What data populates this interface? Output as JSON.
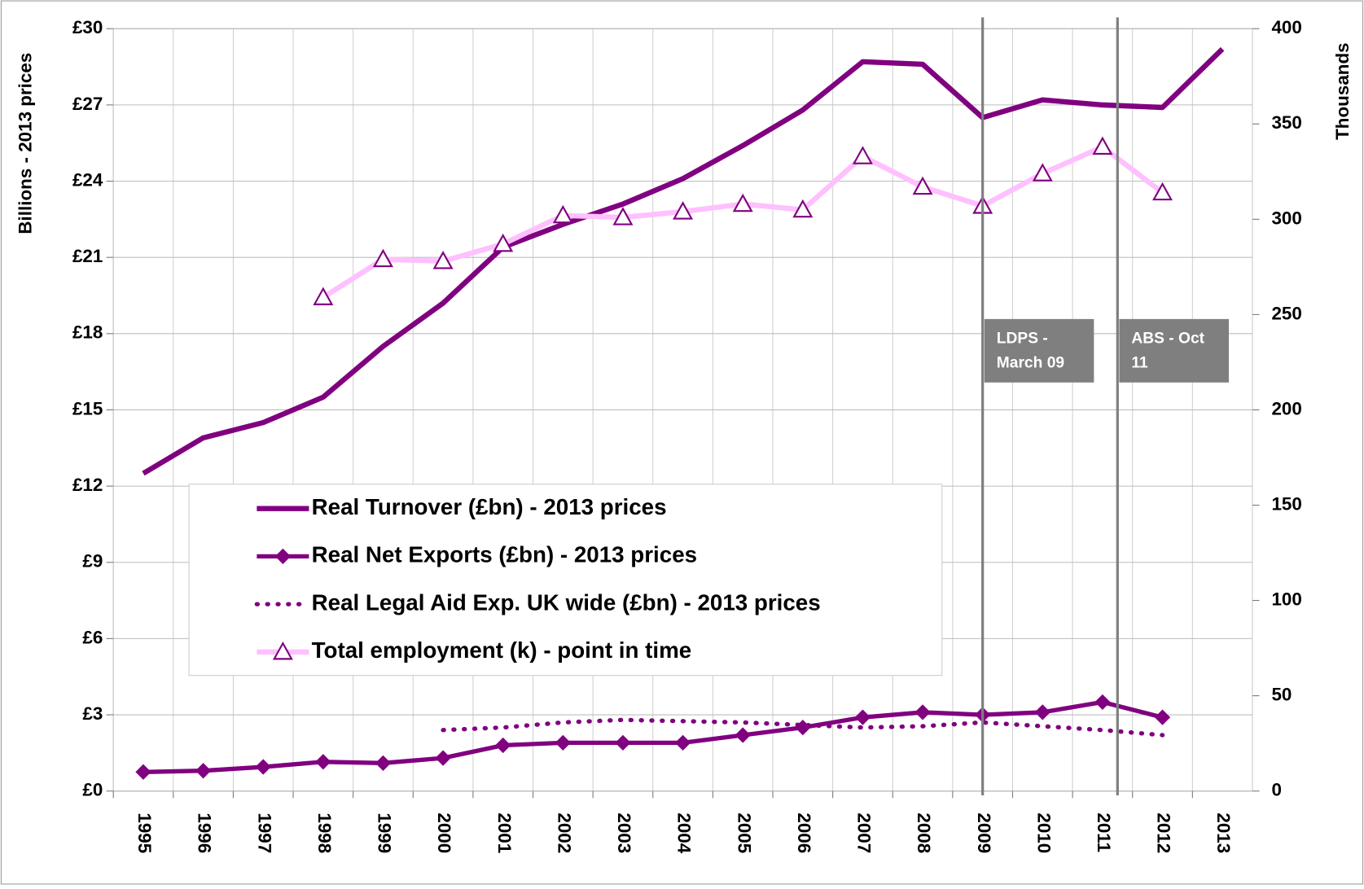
{
  "chart_data": {
    "type": "line",
    "categories": [
      "1995",
      "1996",
      "1997",
      "1998",
      "1999",
      "2000",
      "2001",
      "2002",
      "2003",
      "2004",
      "2005",
      "2006",
      "2007",
      "2008",
      "2009",
      "2010",
      "2011",
      "2012",
      "2013"
    ],
    "ylabel": "Billions - 2013 prices",
    "y2label": "Thousands",
    "ylim": [
      0,
      30
    ],
    "yticks": [
      {
        "value": 0,
        "label": "£0"
      },
      {
        "value": 3,
        "label": "£3"
      },
      {
        "value": 6,
        "label": "£6"
      },
      {
        "value": 9,
        "label": "£9"
      },
      {
        "value": 12,
        "label": "£12"
      },
      {
        "value": 15,
        "label": "£15"
      },
      {
        "value": 18,
        "label": "£18"
      },
      {
        "value": 21,
        "label": "£21"
      },
      {
        "value": 24,
        "label": "£24"
      },
      {
        "value": 27,
        "label": "£27"
      },
      {
        "value": 30,
        "label": "£30"
      }
    ],
    "y2lim": [
      0,
      400
    ],
    "y2ticks": [
      0,
      50,
      100,
      150,
      200,
      250,
      300,
      350,
      400
    ],
    "grid": true,
    "series": [
      {
        "name": "Real Turnover (£bn) - 2013 prices",
        "color": "#800080",
        "width": 6,
        "marker": null,
        "dash": null,
        "values": [
          12.5,
          13.9,
          14.5,
          15.5,
          17.5,
          19.2,
          21.4,
          22.3,
          23.1,
          24.1,
          25.4,
          26.8,
          28.7,
          28.6,
          26.5,
          27.2,
          27.0,
          26.9,
          29.2
        ]
      },
      {
        "name": "Real Net Exports (£bn) - 2013 prices",
        "color": "#800080",
        "width": 5,
        "marker": "diamond",
        "dash": null,
        "values": [
          0.75,
          0.8,
          0.95,
          1.15,
          1.1,
          1.3,
          1.8,
          1.9,
          1.9,
          1.9,
          2.2,
          2.5,
          2.9,
          3.1,
          3.0,
          3.1,
          3.5,
          2.9,
          null
        ]
      },
      {
        "name": "Real Legal Aid Exp. UK wide (£bn) - 2013 prices",
        "color": "#800080",
        "width": 5,
        "marker": null,
        "dash": "dotted",
        "values": [
          null,
          null,
          null,
          null,
          null,
          2.4,
          2.5,
          2.7,
          2.8,
          2.75,
          2.7,
          2.6,
          2.5,
          2.55,
          2.7,
          2.55,
          2.4,
          2.2,
          null
        ]
      },
      {
        "name": "Total employment (k) - point in time",
        "color": "#ffc0ff",
        "width": 6,
        "marker": "triangle",
        "dash": null,
        "axis": "y2",
        "values": [
          null,
          null,
          null,
          259,
          279,
          278,
          287,
          302,
          301,
          304,
          308,
          305,
          333,
          317,
          307,
          324,
          338,
          314,
          null
        ]
      }
    ],
    "annotations": [
      {
        "x": 2009,
        "text": [
          "LDPS -",
          "March 09"
        ]
      },
      {
        "x": 2011.25,
        "text": [
          "ABS - Oct",
          "11"
        ]
      }
    ]
  }
}
